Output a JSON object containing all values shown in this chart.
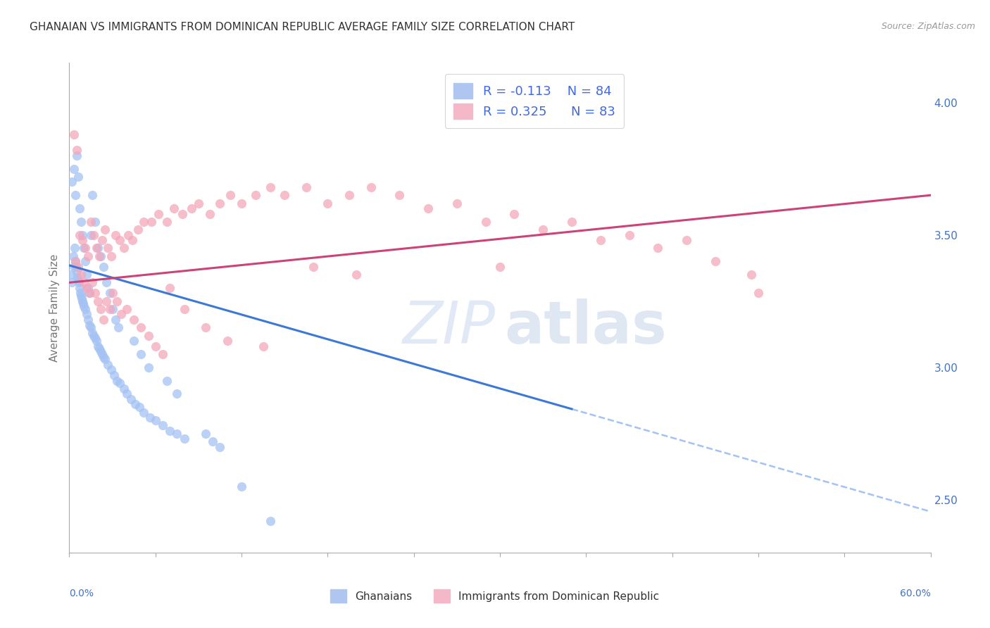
{
  "title": "GHANAIAN VS IMMIGRANTS FROM DOMINICAN REPUBLIC AVERAGE FAMILY SIZE CORRELATION CHART",
  "source": "Source: ZipAtlas.com",
  "ylabel": "Average Family Size",
  "ylabel_right_ticks": [
    2.5,
    3.0,
    3.5,
    4.0
  ],
  "xlim": [
    0.0,
    60.0
  ],
  "ylim": [
    2.3,
    4.15
  ],
  "ghanaian_color": "#a4c2f4",
  "dominican_color": "#f4a7b9",
  "trendline_blue_color": "#3c78d8",
  "trendline_pink_color": "#cc4477",
  "trendline_dashed_color": "#a4c2f4",
  "background_color": "#ffffff",
  "grid_color": "#cccccc",
  "watermark_zip_color": "#c8d8ee",
  "watermark_atlas_color": "#b8cce4",
  "gh_intercept": 3.385,
  "gh_slope": -0.0155,
  "gh_solid_end": 35.0,
  "dr_intercept": 3.32,
  "dr_slope": 0.0055,
  "ghanaian_x": [
    0.15,
    0.2,
    0.25,
    0.3,
    0.35,
    0.4,
    0.45,
    0.5,
    0.55,
    0.6,
    0.65,
    0.7,
    0.75,
    0.8,
    0.85,
    0.9,
    0.95,
    1.0,
    1.1,
    1.2,
    1.3,
    1.4,
    1.5,
    1.6,
    1.7,
    1.8,
    1.9,
    2.0,
    2.1,
    2.2,
    2.3,
    2.4,
    2.5,
    2.7,
    2.9,
    3.1,
    3.3,
    3.5,
    3.8,
    4.0,
    4.3,
    4.6,
    4.9,
    5.2,
    5.6,
    6.0,
    6.5,
    7.0,
    7.5,
    8.0,
    0.2,
    0.3,
    0.4,
    0.5,
    0.6,
    0.7,
    0.8,
    0.9,
    1.0,
    1.1,
    1.2,
    1.3,
    1.4,
    1.5,
    1.6,
    1.8,
    2.0,
    2.2,
    2.4,
    2.6,
    2.8,
    3.0,
    3.2,
    3.4,
    4.5,
    5.0,
    5.5,
    6.8,
    7.5,
    9.5,
    10.0,
    10.5,
    12.0,
    14.0
  ],
  "ghanaian_y": [
    3.35,
    3.32,
    3.42,
    3.38,
    3.45,
    3.4,
    3.38,
    3.36,
    3.34,
    3.33,
    3.32,
    3.3,
    3.28,
    3.27,
    3.26,
    3.25,
    3.24,
    3.23,
    3.22,
    3.2,
    3.18,
    3.16,
    3.15,
    3.13,
    3.12,
    3.11,
    3.1,
    3.08,
    3.07,
    3.06,
    3.05,
    3.04,
    3.03,
    3.01,
    2.99,
    2.97,
    2.95,
    2.94,
    2.92,
    2.9,
    2.88,
    2.86,
    2.85,
    2.83,
    2.81,
    2.8,
    2.78,
    2.76,
    2.75,
    2.73,
    3.7,
    3.75,
    3.65,
    3.8,
    3.72,
    3.6,
    3.55,
    3.5,
    3.45,
    3.4,
    3.35,
    3.3,
    3.28,
    3.5,
    3.65,
    3.55,
    3.45,
    3.42,
    3.38,
    3.32,
    3.28,
    3.22,
    3.18,
    3.15,
    3.1,
    3.05,
    3.0,
    2.95,
    2.9,
    2.75,
    2.72,
    2.7,
    2.55,
    2.42
  ],
  "dominican_x": [
    0.3,
    0.5,
    0.7,
    0.9,
    1.1,
    1.3,
    1.5,
    1.7,
    1.9,
    2.1,
    2.3,
    2.5,
    2.7,
    2.9,
    3.2,
    3.5,
    3.8,
    4.1,
    4.4,
    4.8,
    5.2,
    5.7,
    6.2,
    6.8,
    7.3,
    7.9,
    8.5,
    9.0,
    9.8,
    10.5,
    11.2,
    12.0,
    13.0,
    14.0,
    15.0,
    16.5,
    18.0,
    19.5,
    21.0,
    23.0,
    25.0,
    27.0,
    29.0,
    31.0,
    33.0,
    35.0,
    37.0,
    39.0,
    41.0,
    43.0,
    45.0,
    47.5,
    0.4,
    0.6,
    0.8,
    1.0,
    1.2,
    1.4,
    1.6,
    1.8,
    2.0,
    2.2,
    2.4,
    2.6,
    2.8,
    3.0,
    3.3,
    3.6,
    4.0,
    4.5,
    5.0,
    5.5,
    6.0,
    6.5,
    7.0,
    8.0,
    9.5,
    11.0,
    13.5,
    17.0,
    20.0,
    30.0,
    48.0
  ],
  "dominican_y": [
    3.88,
    3.82,
    3.5,
    3.48,
    3.45,
    3.42,
    3.55,
    3.5,
    3.45,
    3.42,
    3.48,
    3.52,
    3.45,
    3.42,
    3.5,
    3.48,
    3.45,
    3.5,
    3.48,
    3.52,
    3.55,
    3.55,
    3.58,
    3.55,
    3.6,
    3.58,
    3.6,
    3.62,
    3.58,
    3.62,
    3.65,
    3.62,
    3.65,
    3.68,
    3.65,
    3.68,
    3.62,
    3.65,
    3.68,
    3.65,
    3.6,
    3.62,
    3.55,
    3.58,
    3.52,
    3.55,
    3.48,
    3.5,
    3.45,
    3.48,
    3.4,
    3.35,
    3.4,
    3.38,
    3.35,
    3.32,
    3.3,
    3.28,
    3.32,
    3.28,
    3.25,
    3.22,
    3.18,
    3.25,
    3.22,
    3.28,
    3.25,
    3.2,
    3.22,
    3.18,
    3.15,
    3.12,
    3.08,
    3.05,
    3.3,
    3.22,
    3.15,
    3.1,
    3.08,
    3.38,
    3.35,
    3.38,
    3.28
  ]
}
